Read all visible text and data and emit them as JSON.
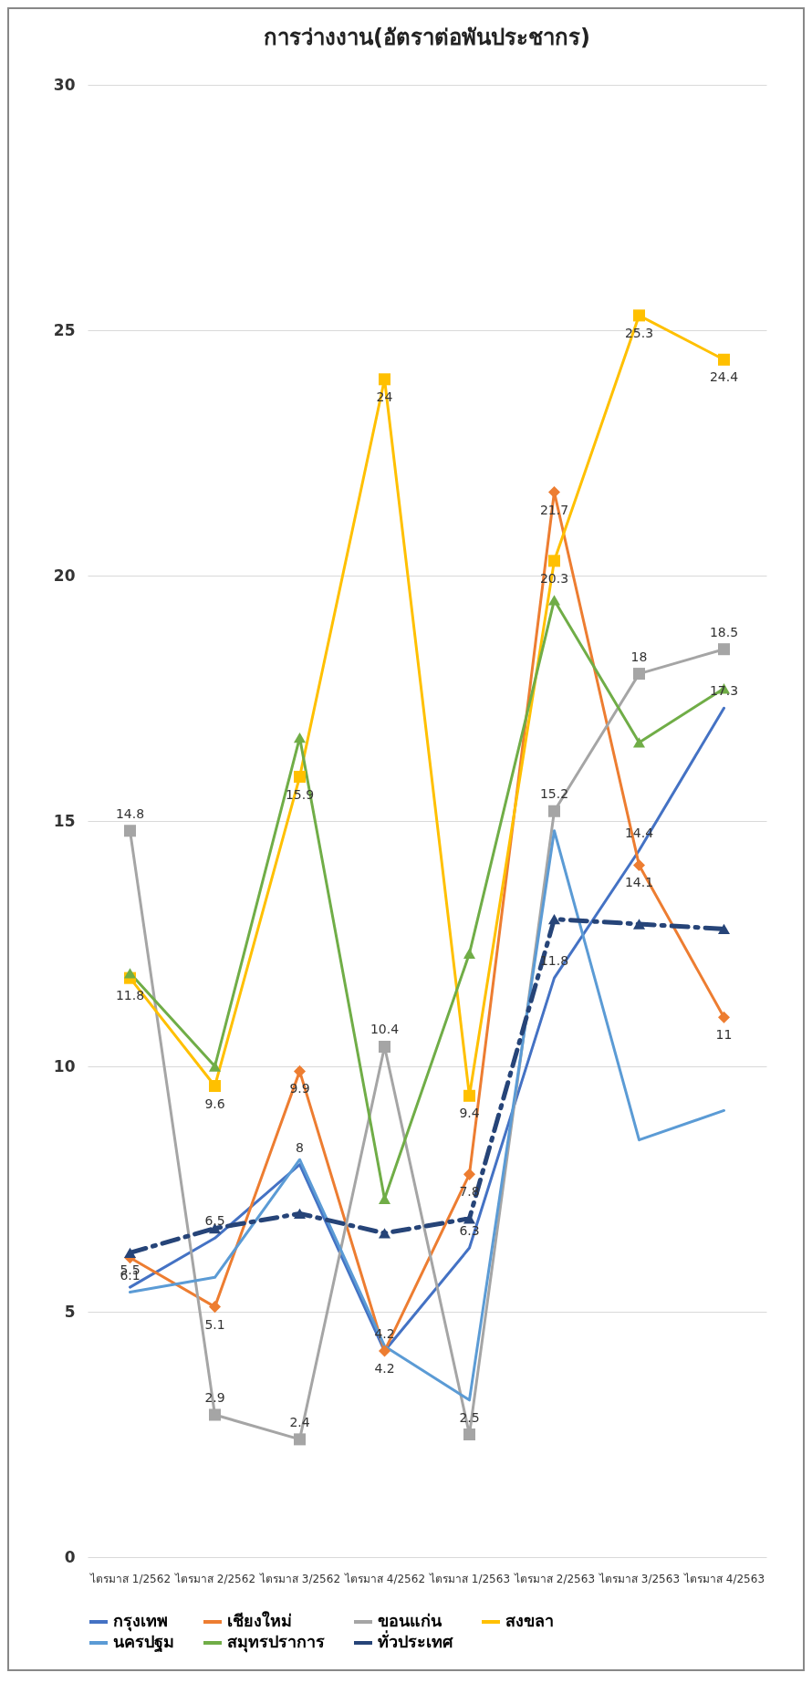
{
  "chart_data": {
    "type": "line",
    "title": "การว่างงาน(อัตราต่อพันประชากร)",
    "categories": [
      "ไตรมาส 1/2562",
      "ไตรมาส 2/2562",
      "ไตรมาส 3/2562",
      "ไตรมาส 4/2562",
      "ไตรมาส 1/2563",
      "ไตรมาส 2/2563",
      "ไตรมาส 3/2563",
      "ไตรมาส 4/2563"
    ],
    "ylim": [
      0,
      30
    ],
    "yticks": [
      0,
      5,
      10,
      15,
      20,
      25,
      30
    ],
    "grid": "y",
    "legend": "bottom",
    "series": [
      {
        "name": "กรุงเทพ",
        "color": "#4472c4",
        "marker": "none",
        "line_style": "solid",
        "data_labels": true,
        "values": [
          5.5,
          6.5,
          8,
          4.2,
          6.3,
          11.8,
          14.4,
          17.3
        ]
      },
      {
        "name": "เชียงใหม่",
        "color": "#ed7d31",
        "marker": "diamond",
        "line_style": "solid",
        "data_labels": true,
        "values": [
          6.1,
          5.1,
          9.9,
          4.2,
          7.8,
          21.7,
          14.1,
          11
        ]
      },
      {
        "name": "ขอนแก่น",
        "color": "#a5a5a5",
        "marker": "square",
        "line_style": "solid",
        "data_labels": true,
        "values": [
          14.8,
          2.9,
          2.4,
          10.4,
          2.5,
          15.2,
          18,
          18.5
        ]
      },
      {
        "name": "สงขลา",
        "color": "#ffc000",
        "marker": "square",
        "line_style": "solid",
        "data_labels": true,
        "values": [
          11.8,
          9.6,
          15.9,
          24,
          9.4,
          20.3,
          25.3,
          24.4
        ]
      },
      {
        "name": "นครปฐม",
        "color": "#5b9bd5",
        "marker": "none",
        "line_style": "solid",
        "values": [
          5.4,
          5.7,
          8.1,
          4.3,
          3.2,
          14.8,
          8.5,
          9.1
        ]
      },
      {
        "name": "สมุทรปราการ",
        "color": "#70ad47",
        "marker": "triangle",
        "line_style": "solid",
        "values": [
          11.9,
          10,
          16.7,
          7.3,
          12.3,
          19.5,
          16.6,
          17.7
        ]
      },
      {
        "name": "ทั่วประเทศ",
        "color": "#264478",
        "marker": "triangle",
        "line_style": "dashed",
        "values": [
          6.2,
          6.7,
          7,
          6.6,
          6.9,
          13,
          12.9,
          12.8
        ]
      }
    ]
  }
}
